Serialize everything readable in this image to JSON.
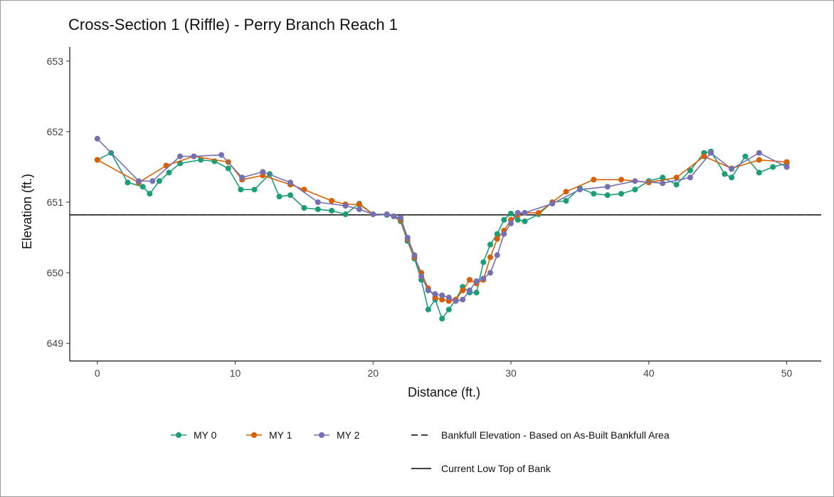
{
  "chart_data": {
    "type": "line",
    "title": "Cross-Section 1 (Riffle) - Perry Branch Reach 1",
    "xlabel": "Distance (ft.)",
    "ylabel": "Elevation (ft.)",
    "xlim": [
      -2,
      52.5
    ],
    "ylim": [
      648.75,
      653.2
    ],
    "x_ticks": [
      0,
      10,
      20,
      30,
      40,
      50
    ],
    "y_ticks": [
      649,
      650,
      651,
      652,
      653
    ],
    "grid": false,
    "legend_position": "bottom",
    "series": [
      {
        "name": "MY 0",
        "color": "#1b9e77",
        "x": [
          0,
          1,
          2.2,
          3.3,
          3.8,
          4.5,
          5.2,
          6,
          7.5,
          8.5,
          9.5,
          10.4,
          11.4,
          12.5,
          13.2,
          14,
          15,
          16,
          17,
          18,
          19,
          20,
          21,
          21.5,
          22,
          22.5,
          23,
          23.5,
          24,
          24.5,
          25,
          25.5,
          26,
          26.5,
          27,
          27.5,
          28,
          28.5,
          29,
          29.5,
          30,
          30.5,
          31,
          32,
          33,
          34,
          35,
          36,
          37,
          38,
          39,
          40,
          41,
          42,
          43,
          44,
          44.5,
          45.5,
          46,
          47,
          48,
          49,
          50
        ],
        "y": [
          651.6,
          651.7,
          651.28,
          651.22,
          651.12,
          651.3,
          651.42,
          651.55,
          651.6,
          651.58,
          651.48,
          651.18,
          651.18,
          651.4,
          651.08,
          651.1,
          650.92,
          650.9,
          650.88,
          650.83,
          650.98,
          650.83,
          650.82,
          650.8,
          650.73,
          650.45,
          650.2,
          649.9,
          649.48,
          649.62,
          649.35,
          649.48,
          649.62,
          649.8,
          649.72,
          649.72,
          650.15,
          650.4,
          650.55,
          650.75,
          650.84,
          650.75,
          650.73,
          650.83,
          651.0,
          651.02,
          651.2,
          651.12,
          651.1,
          651.12,
          651.18,
          651.3,
          651.35,
          651.25,
          651.45,
          651.7,
          651.72,
          651.4,
          651.35,
          651.65,
          651.42,
          651.5,
          651.55
        ]
      },
      {
        "name": "MY 1",
        "color": "#d95f02",
        "x": [
          0,
          3,
          5,
          7,
          9.5,
          10.5,
          12,
          14,
          15,
          17,
          18,
          19,
          20,
          21,
          21.5,
          22,
          22.5,
          23,
          23.5,
          24,
          24.5,
          25,
          25.5,
          26,
          26.5,
          27,
          27.5,
          28,
          28.5,
          29,
          29.5,
          30,
          30.5,
          31,
          32,
          33,
          34,
          36,
          38,
          40,
          42,
          44,
          46,
          48,
          50
        ],
        "y": [
          651.6,
          651.28,
          651.52,
          651.65,
          651.57,
          651.32,
          651.38,
          651.25,
          651.18,
          651.02,
          650.97,
          650.97,
          650.83,
          650.83,
          650.8,
          650.75,
          650.48,
          650.22,
          650.0,
          649.78,
          649.65,
          649.62,
          649.6,
          649.62,
          649.75,
          649.9,
          649.85,
          649.9,
          650.22,
          650.48,
          650.6,
          650.75,
          650.82,
          650.85,
          650.85,
          651.0,
          651.15,
          651.32,
          651.32,
          651.28,
          651.35,
          651.65,
          651.48,
          651.6,
          651.57
        ]
      },
      {
        "name": "MY 2",
        "color": "#7570b3",
        "x": [
          0,
          3,
          4,
          6,
          7,
          9,
          10.5,
          12,
          14,
          16,
          18,
          19,
          20,
          21,
          21.5,
          22,
          22.5,
          23,
          23.5,
          24,
          24.5,
          25,
          25.5,
          26,
          26.5,
          27,
          27.5,
          28,
          28.5,
          29,
          29.5,
          30,
          30.5,
          31,
          33,
          35,
          37,
          39,
          41,
          43,
          44.5,
          46,
          48,
          50
        ],
        "y": [
          651.9,
          651.3,
          651.3,
          651.65,
          651.65,
          651.67,
          651.35,
          651.43,
          651.28,
          651.0,
          650.95,
          650.9,
          650.83,
          650.83,
          650.8,
          650.78,
          650.5,
          650.25,
          649.95,
          649.75,
          649.7,
          649.68,
          649.65,
          649.6,
          649.62,
          649.75,
          649.88,
          649.92,
          650.0,
          650.25,
          650.55,
          650.7,
          650.85,
          650.85,
          650.98,
          651.18,
          651.22,
          651.3,
          651.27,
          651.35,
          651.7,
          651.47,
          651.7,
          651.5
        ]
      }
    ],
    "reference_lines": [
      {
        "label": "Bankfull Elevation - Based on As-Built Bankfull Area",
        "y": 650.82,
        "style": "dashed",
        "color": "#000000"
      },
      {
        "label": "Current Low Top of Bank",
        "y": 650.82,
        "style": "solid",
        "color": "#000000"
      }
    ]
  }
}
